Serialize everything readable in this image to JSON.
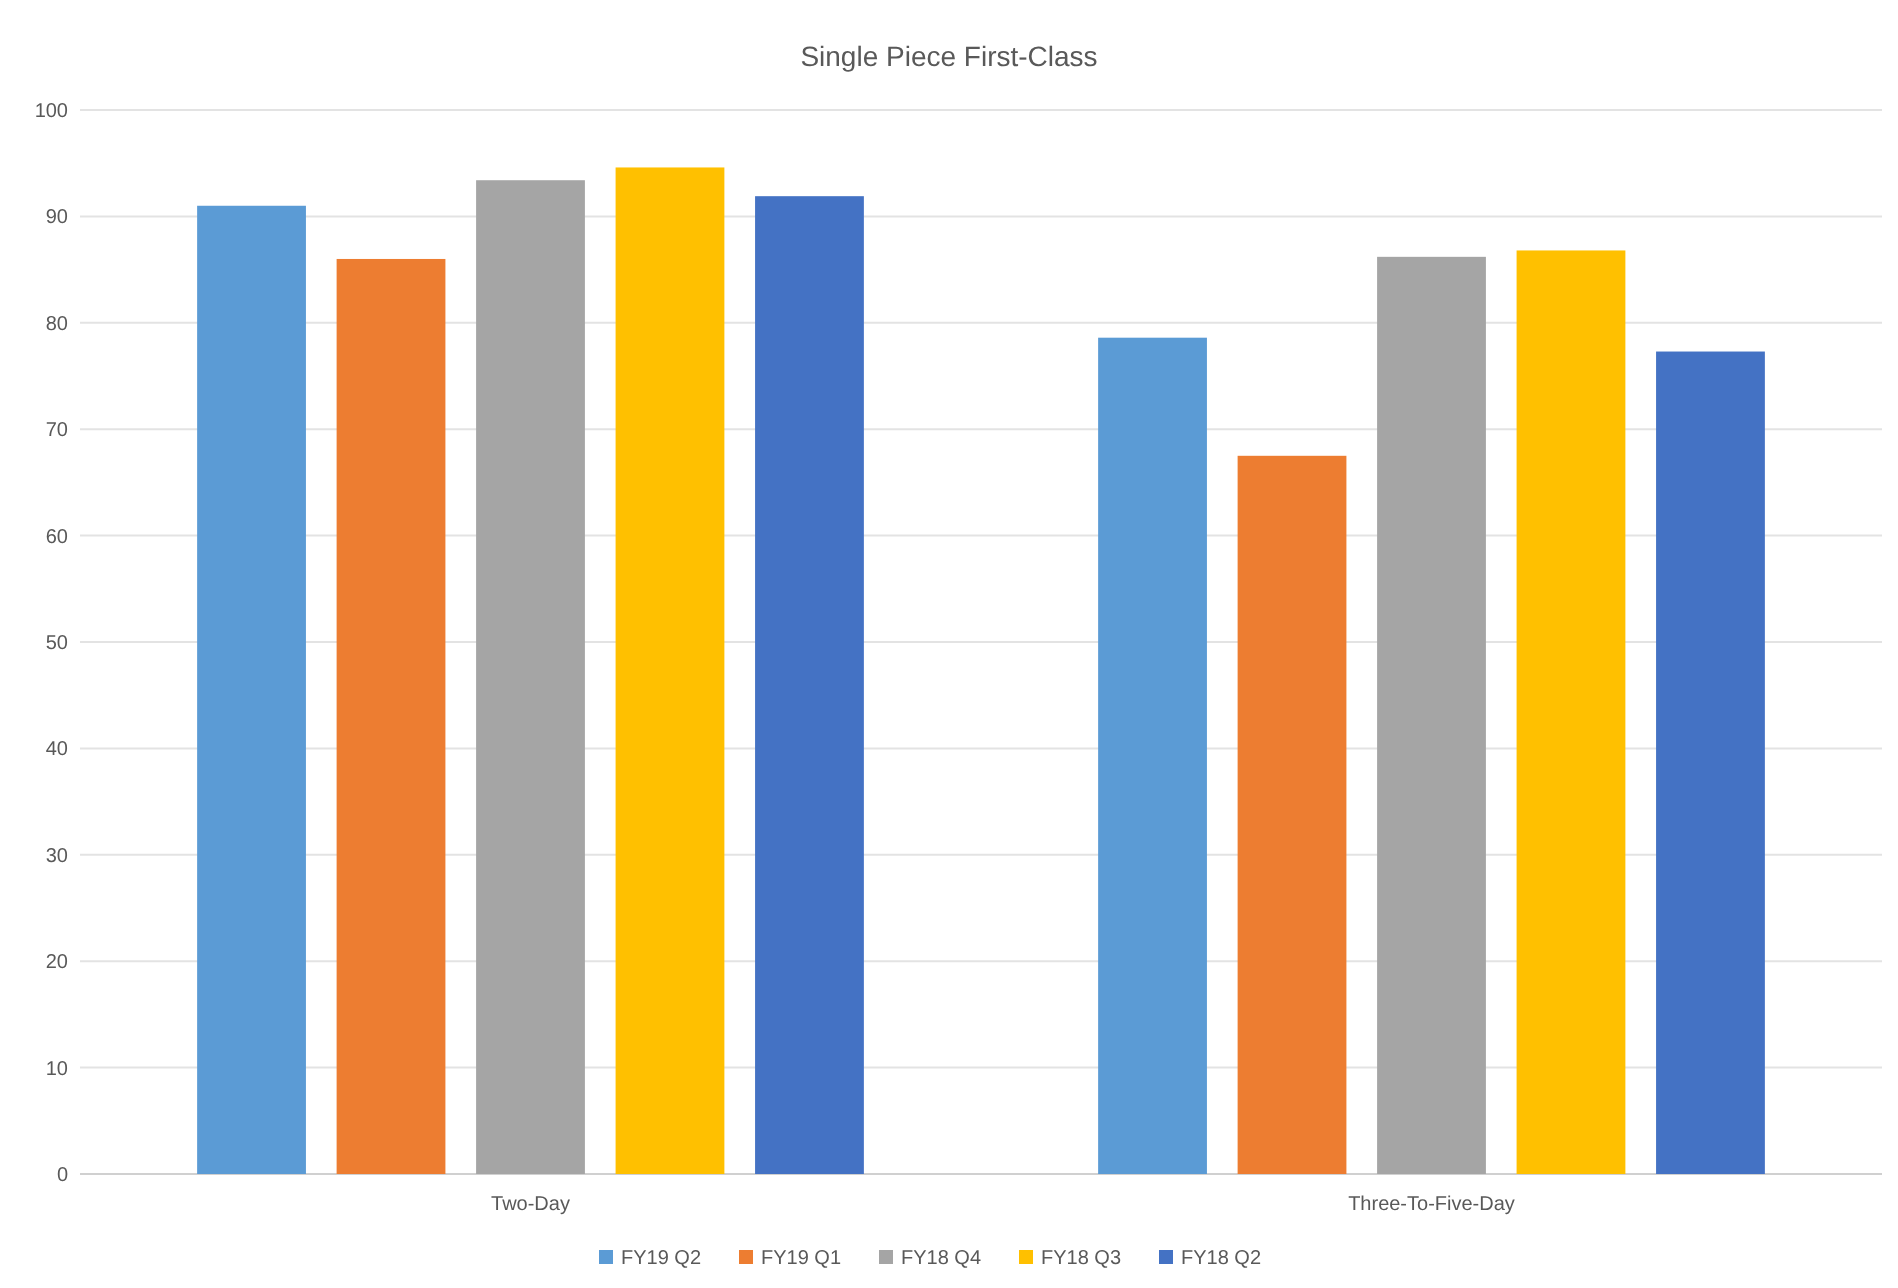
{
  "chart_data": {
    "type": "bar",
    "title": "Single Piece First-Class",
    "categories": [
      "Two-Day",
      "Three-To-Five-Day"
    ],
    "series": [
      {
        "name": "FY19 Q2",
        "color": "#5b9bd5",
        "values": [
          91.0,
          78.6
        ]
      },
      {
        "name": "FY19 Q1",
        "color": "#ed7d31",
        "values": [
          86.0,
          67.5
        ]
      },
      {
        "name": "FY18 Q4",
        "color": "#a5a5a5",
        "values": [
          93.4,
          86.2
        ]
      },
      {
        "name": "FY18 Q3",
        "color": "#ffc000",
        "values": [
          94.6,
          86.8
        ]
      },
      {
        "name": "FY18 Q2",
        "color": "#4472c4",
        "values": [
          91.9,
          77.3
        ]
      }
    ],
    "ylim": [
      0,
      100
    ],
    "yticks": [
      0,
      10,
      20,
      30,
      40,
      50,
      60,
      70,
      80,
      90,
      100
    ],
    "grid": "y",
    "legend": "bottom"
  }
}
